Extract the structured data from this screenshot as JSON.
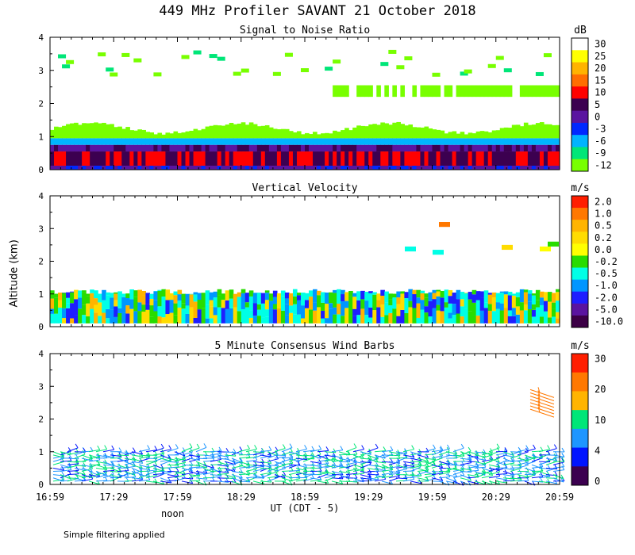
{
  "title": "449 MHz Profiler SAVANT 21 October 2018",
  "ylabel": "Altitude (km)",
  "xlabel": "UT  (CDT - 5)",
  "footnote": "Simple filtering applied",
  "x_ticks": [
    "16:59",
    "17:29",
    "17:59",
    "18:29",
    "18:59",
    "19:29",
    "19:59",
    "20:29",
    "20:59"
  ],
  "noon_label": "noon",
  "y_ticks": [
    "0",
    "1",
    "2",
    "3",
    "4"
  ],
  "chart_data": [
    {
      "type": "heatmap",
      "title": "Signal to Noise Ratio",
      "unit": "dB",
      "xlabel": "UT  (CDT - 5)",
      "ylabel": "Altitude (km)",
      "x_range": [
        "16:59",
        "20:59"
      ],
      "ylim": [
        0,
        4
      ],
      "colorbar_labels": [
        "30",
        "25",
        "20",
        "15",
        "10",
        "5",
        "0",
        "-3",
        "-6",
        "-9",
        "-12"
      ],
      "colorbar_colors": [
        "#ffffff",
        "#ffff00",
        "#ffb400",
        "#ff6e00",
        "#ff0000",
        "#3c0050",
        "#5a14a0",
        "#0028ff",
        "#00b4ff",
        "#00e678",
        "#78ff00"
      ],
      "profile": [
        {
          "altitude_km": 0.1,
          "value_db": 2
        },
        {
          "altitude_km": 0.3,
          "value_db": 8
        },
        {
          "altitude_km": 0.5,
          "value_db": 6
        },
        {
          "altitude_km": 0.8,
          "value_db": -8
        },
        {
          "altitude_km": 1.1,
          "value_db": -11
        },
        {
          "altitude_km": 2.4,
          "value_db": -11
        },
        {
          "altitude_km": 3.2,
          "value_db": -12
        }
      ]
    },
    {
      "type": "heatmap",
      "title": "Vertical Velocity",
      "unit": "m/s",
      "xlabel": "UT  (CDT - 5)",
      "ylabel": "Altitude (km)",
      "x_range": [
        "16:59",
        "20:59"
      ],
      "ylim": [
        0,
        4
      ],
      "colorbar_labels": [
        "2.0",
        "1.0",
        "0.5",
        "0.2",
        "0.0",
        "-0.2",
        "-0.5",
        "-1.0",
        "-2.0",
        "-5.0",
        "-10.0"
      ],
      "colorbar_colors": [
        "#ff1e00",
        "#ff7800",
        "#ffb400",
        "#ffdc00",
        "#ffff00",
        "#28dc00",
        "#00ffe6",
        "#0096ff",
        "#1e1eff",
        "#5a14a0",
        "#3c0046"
      ],
      "profile": [
        {
          "altitude_km": 0.2,
          "value_ms": -1.0
        },
        {
          "altitude_km": 0.6,
          "value_ms": -0.5
        },
        {
          "altitude_km": 1.0,
          "value_ms": -0.2
        },
        {
          "altitude_km": 2.4,
          "value_ms": 0.0
        }
      ]
    },
    {
      "type": "heatmap",
      "title": "5 Minute Consensus Wind Barbs",
      "unit": "m/s",
      "xlabel": "UT  (CDT - 5)",
      "ylabel": "Altitude (km)",
      "x_range": [
        "16:59",
        "20:59"
      ],
      "ylim": [
        0,
        4
      ],
      "colorbar_labels": [
        "30",
        "20",
        "10",
        "4",
        "0"
      ],
      "colorbar_colors": [
        "#ff1e00",
        "#ff7800",
        "#ffb400",
        "#00e678",
        "#1e96ff",
        "#0014ff",
        "#3c0050"
      ],
      "profile": [
        {
          "altitude_km": 0.2,
          "speed_ms": 6
        },
        {
          "altitude_km": 0.6,
          "speed_ms": 8
        },
        {
          "altitude_km": 1.0,
          "speed_ms": 7
        },
        {
          "altitude_km": 2.6,
          "speed_ms": 20
        }
      ]
    }
  ]
}
